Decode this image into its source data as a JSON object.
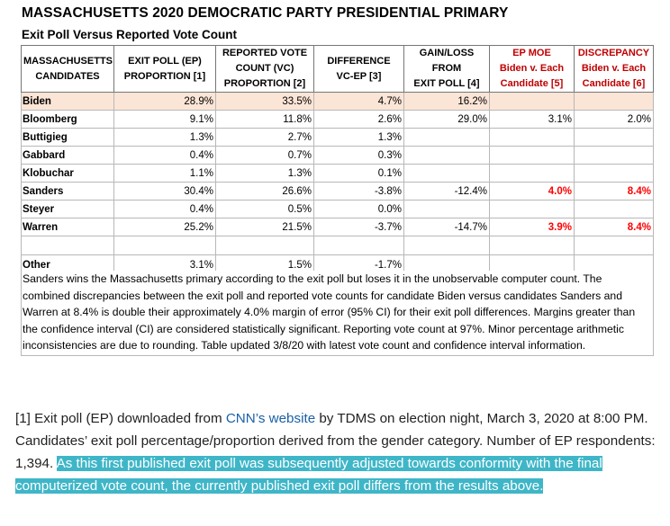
{
  "title": "MASSACHUSETTS 2020 DEMOCRATIC PARTY PRESIDENTIAL PRIMARY",
  "subtitle": "Exit Poll Versus Reported Vote Count",
  "headers": {
    "candidates": [
      "MASSACHUSETTS",
      "CANDIDATES"
    ],
    "ep": [
      "EXIT POLL (EP)",
      "PROPORTION [1]"
    ],
    "vc": [
      "REPORTED VOTE",
      "COUNT (VC)",
      "PROPORTION [2]"
    ],
    "diff": [
      "DIFFERENCE",
      "VC-EP [3]"
    ],
    "gain": [
      "GAIN/LOSS",
      "FROM",
      "EXIT POLL [4]"
    ],
    "moe": [
      "EP MOE",
      "Biden v. Each",
      "Candidate [5]"
    ],
    "disc": [
      "DISCREPANCY",
      "Biden v. Each",
      "Candidate [6]"
    ]
  },
  "rows": [
    {
      "name": "Biden",
      "ep": "28.9%",
      "vc": "33.5%",
      "diff": "4.7%",
      "gain": "16.2%",
      "moe": "",
      "disc": ""
    },
    {
      "name": "Bloomberg",
      "ep": "9.1%",
      "vc": "11.8%",
      "diff": "2.6%",
      "gain": "29.0%",
      "moe": "3.1%",
      "disc": "2.0%"
    },
    {
      "name": "Buttigieg",
      "ep": "1.3%",
      "vc": "2.7%",
      "diff": "1.3%",
      "gain": "",
      "moe": "",
      "disc": ""
    },
    {
      "name": "Gabbard",
      "ep": "0.4%",
      "vc": "0.7%",
      "diff": "0.3%",
      "gain": "",
      "moe": "",
      "disc": ""
    },
    {
      "name": "Klobuchar",
      "ep": "1.1%",
      "vc": "1.3%",
      "diff": "0.1%",
      "gain": "",
      "moe": "",
      "disc": ""
    },
    {
      "name": "Sanders",
      "ep": "30.4%",
      "vc": "26.6%",
      "diff": "-3.8%",
      "gain": "-12.4%",
      "moe": "4.0%",
      "disc": "8.4%"
    },
    {
      "name": "Steyer",
      "ep": "0.4%",
      "vc": "0.5%",
      "diff": "0.0%",
      "gain": "",
      "moe": "",
      "disc": ""
    },
    {
      "name": "Warren",
      "ep": "25.2%",
      "vc": "21.5%",
      "diff": "-3.7%",
      "gain": "-14.7%",
      "moe": "3.9%",
      "disc": "8.4%"
    }
  ],
  "other": {
    "name": "Other",
    "ep": "3.1%",
    "vc": "1.5%",
    "diff": "-1.7%"
  },
  "note": "Sanders wins the Massachusetts primary according to the exit poll but loses it in the unobservable computer count. The combined discrepancies between the exit poll and reported vote counts for candidate Biden versus candidates Sanders and Warren at 8.4% is double their approximately 4.0% margin of error (95% CI) for their exit poll differences. Margins greater than the confidence interval (CI) are considered statistically significant.  Reporting vote count at 97%. Minor percentage arithmetic inconsistencies are due to rounding. Table updated 3/8/20 with latest vote count and confidence interval information.",
  "footnote": {
    "prefix": "[1] Exit poll (EP) downloaded from ",
    "link": "CNN’s website",
    "middle": " by TDMS on election night, March 3, 2020 at 8:00 PM. Candidates’ exit poll percentage/proportion derived from the gender category. Number of EP respondents: 1,394. ",
    "highlighted": "As this first published exit poll was subsequently adjusted towards conformity with the final computerized vote count, the currently published exit poll differs from the results above."
  },
  "colors": {
    "biden_row": "#fbe5d6",
    "significant": "#ff0000",
    "header_red": "#c00000",
    "link": "#1a5fa8",
    "highlight": "#3fb6c8"
  }
}
